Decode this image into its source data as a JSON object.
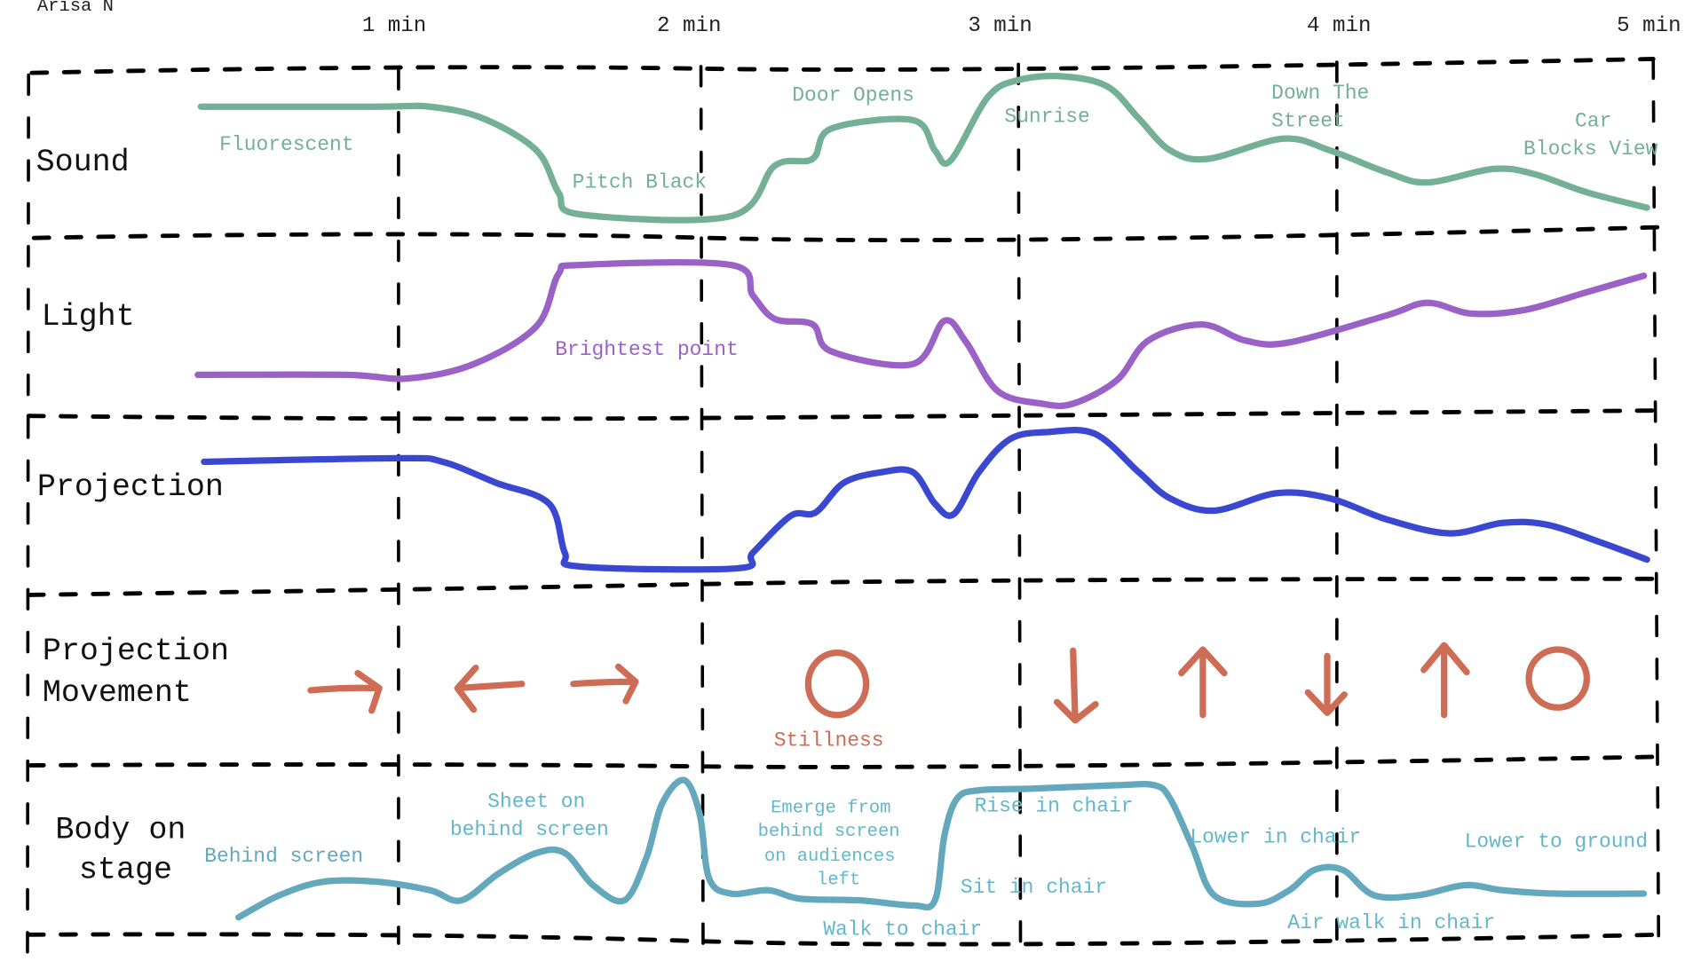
{
  "author": "Arisa N",
  "time_axis": [
    "1 min",
    "2 min",
    "3 min",
    "4 min",
    "5 min"
  ],
  "colors": {
    "sound": "#74b095",
    "light": "#9a62c6",
    "projection": "#3a47d0",
    "movement": "#cf6c55",
    "body": "#63a8bc",
    "grid": "#000000"
  },
  "rows": {
    "sound": "Sound",
    "light": "Light",
    "projection": "Projection",
    "movement": [
      "Projection",
      "Movement"
    ],
    "body": [
      "Body on",
      "stage"
    ]
  },
  "annotations": {
    "sound": {
      "fluorescent": "Fluorescent",
      "pitch_black": "Pitch Black",
      "door_opens": "Door Opens",
      "sunrise": "Sunrise",
      "down_the_street": [
        "Down The",
        "Street"
      ],
      "car_blocks_view": [
        "Car",
        "Blocks View"
      ]
    },
    "light": {
      "brightest": "Brightest point"
    },
    "movement": {
      "stillness": "Stillness"
    },
    "body": {
      "behind_screen": "Behind screen",
      "sheet_on": [
        "Sheet on",
        "behind screen"
      ],
      "emerge": [
        "Emerge from",
        "behind screen",
        "on audiences",
        "left"
      ],
      "walk_to_chair": "Walk to chair",
      "rise_in_chair": "Rise in chair",
      "sit_in_chair": "Sit in chair",
      "lower_in_chair": "Lower in chair",
      "air_walk": "Air walk in chair",
      "lower_to_ground": "Lower to ground"
    }
  },
  "movement_symbols": [
    "arrow-right",
    "arrow-left",
    "arrow-right",
    "circle",
    "arrow-down",
    "arrow-up",
    "arrow-down",
    "arrow-up",
    "circle"
  ],
  "chart_data": {
    "type": "line",
    "xlabel": "",
    "ylabel": "",
    "x_unit": "min",
    "xlim": [
      0,
      5
    ],
    "ylim": [
      0,
      1
    ],
    "grid": true,
    "series": [
      {
        "name": "Sound",
        "points": [
          [
            0.37,
            0.78
          ],
          [
            0.93,
            0.78
          ],
          [
            1.1,
            0.78
          ],
          [
            1.27,
            0.71
          ],
          [
            1.44,
            0.52
          ],
          [
            1.51,
            0.27
          ],
          [
            1.58,
            0.14
          ],
          [
            2.06,
            0.13
          ],
          [
            2.2,
            0.43
          ],
          [
            2.32,
            0.47
          ],
          [
            2.38,
            0.65
          ],
          [
            2.64,
            0.7
          ],
          [
            2.71,
            0.52
          ],
          [
            2.76,
            0.46
          ],
          [
            2.88,
            0.84
          ],
          [
            2.98,
            0.94
          ],
          [
            3.12,
            0.96
          ],
          [
            3.26,
            0.9
          ],
          [
            3.36,
            0.71
          ],
          [
            3.46,
            0.52
          ],
          [
            3.58,
            0.47
          ],
          [
            3.82,
            0.59
          ],
          [
            3.97,
            0.52
          ],
          [
            4.15,
            0.39
          ],
          [
            4.28,
            0.33
          ],
          [
            4.49,
            0.41
          ],
          [
            4.62,
            0.38
          ],
          [
            4.79,
            0.27
          ],
          [
            4.98,
            0.18
          ]
        ]
      },
      {
        "name": "Light",
        "points": [
          [
            0.36,
            0.24
          ],
          [
            0.83,
            0.24
          ],
          [
            1.03,
            0.22
          ],
          [
            1.24,
            0.3
          ],
          [
            1.44,
            0.51
          ],
          [
            1.51,
            0.8
          ],
          [
            1.58,
            0.85
          ],
          [
            2.06,
            0.85
          ],
          [
            2.13,
            0.68
          ],
          [
            2.2,
            0.55
          ],
          [
            2.32,
            0.52
          ],
          [
            2.38,
            0.37
          ],
          [
            2.64,
            0.3
          ],
          [
            2.74,
            0.54
          ],
          [
            2.81,
            0.42
          ],
          [
            2.91,
            0.15
          ],
          [
            3.05,
            0.08
          ],
          [
            3.15,
            0.08
          ],
          [
            3.29,
            0.21
          ],
          [
            3.39,
            0.43
          ],
          [
            3.56,
            0.52
          ],
          [
            3.7,
            0.43
          ],
          [
            3.84,
            0.42
          ],
          [
            4.15,
            0.57
          ],
          [
            4.28,
            0.64
          ],
          [
            4.42,
            0.58
          ],
          [
            4.59,
            0.6
          ],
          [
            4.79,
            0.7
          ],
          [
            4.97,
            0.79
          ]
        ]
      },
      {
        "name": "Projection",
        "points": [
          [
            0.38,
            0.75
          ],
          [
            1.0,
            0.77
          ],
          [
            1.14,
            0.75
          ],
          [
            1.31,
            0.63
          ],
          [
            1.48,
            0.51
          ],
          [
            1.53,
            0.23
          ],
          [
            1.58,
            0.15
          ],
          [
            2.08,
            0.14
          ],
          [
            2.13,
            0.23
          ],
          [
            2.25,
            0.44
          ],
          [
            2.33,
            0.46
          ],
          [
            2.42,
            0.63
          ],
          [
            2.54,
            0.69
          ],
          [
            2.64,
            0.69
          ],
          [
            2.71,
            0.51
          ],
          [
            2.77,
            0.45
          ],
          [
            2.85,
            0.69
          ],
          [
            2.95,
            0.88
          ],
          [
            3.07,
            0.92
          ],
          [
            3.22,
            0.91
          ],
          [
            3.36,
            0.69
          ],
          [
            3.46,
            0.54
          ],
          [
            3.6,
            0.47
          ],
          [
            3.8,
            0.57
          ],
          [
            3.97,
            0.54
          ],
          [
            4.15,
            0.42
          ],
          [
            4.35,
            0.34
          ],
          [
            4.52,
            0.4
          ],
          [
            4.66,
            0.39
          ],
          [
            4.83,
            0.29
          ],
          [
            4.98,
            0.19
          ]
        ]
      },
      {
        "name": "Body on stage",
        "points": [
          [
            0.49,
            0.09
          ],
          [
            0.62,
            0.22
          ],
          [
            0.76,
            0.3
          ],
          [
            0.93,
            0.3
          ],
          [
            1.1,
            0.25
          ],
          [
            1.2,
            0.19
          ],
          [
            1.32,
            0.35
          ],
          [
            1.44,
            0.47
          ],
          [
            1.53,
            0.47
          ],
          [
            1.62,
            0.28
          ],
          [
            1.72,
            0.19
          ],
          [
            1.79,
            0.44
          ],
          [
            1.84,
            0.76
          ],
          [
            1.91,
            0.9
          ],
          [
            1.96,
            0.7
          ],
          [
            1.99,
            0.32
          ],
          [
            2.06,
            0.23
          ],
          [
            2.18,
            0.25
          ],
          [
            2.28,
            0.2
          ],
          [
            2.47,
            0.19
          ],
          [
            2.64,
            0.16
          ],
          [
            2.71,
            0.19
          ],
          [
            2.74,
            0.57
          ],
          [
            2.78,
            0.79
          ],
          [
            2.85,
            0.84
          ],
          [
            3.02,
            0.85
          ],
          [
            3.29,
            0.87
          ],
          [
            3.41,
            0.87
          ],
          [
            3.46,
            0.79
          ],
          [
            3.53,
            0.51
          ],
          [
            3.6,
            0.22
          ],
          [
            3.74,
            0.17
          ],
          [
            3.84,
            0.25
          ],
          [
            3.92,
            0.37
          ],
          [
            4.01,
            0.37
          ],
          [
            4.11,
            0.22
          ],
          [
            4.25,
            0.22
          ],
          [
            4.4,
            0.28
          ],
          [
            4.52,
            0.25
          ],
          [
            4.69,
            0.23
          ],
          [
            4.97,
            0.23
          ]
        ]
      }
    ]
  }
}
